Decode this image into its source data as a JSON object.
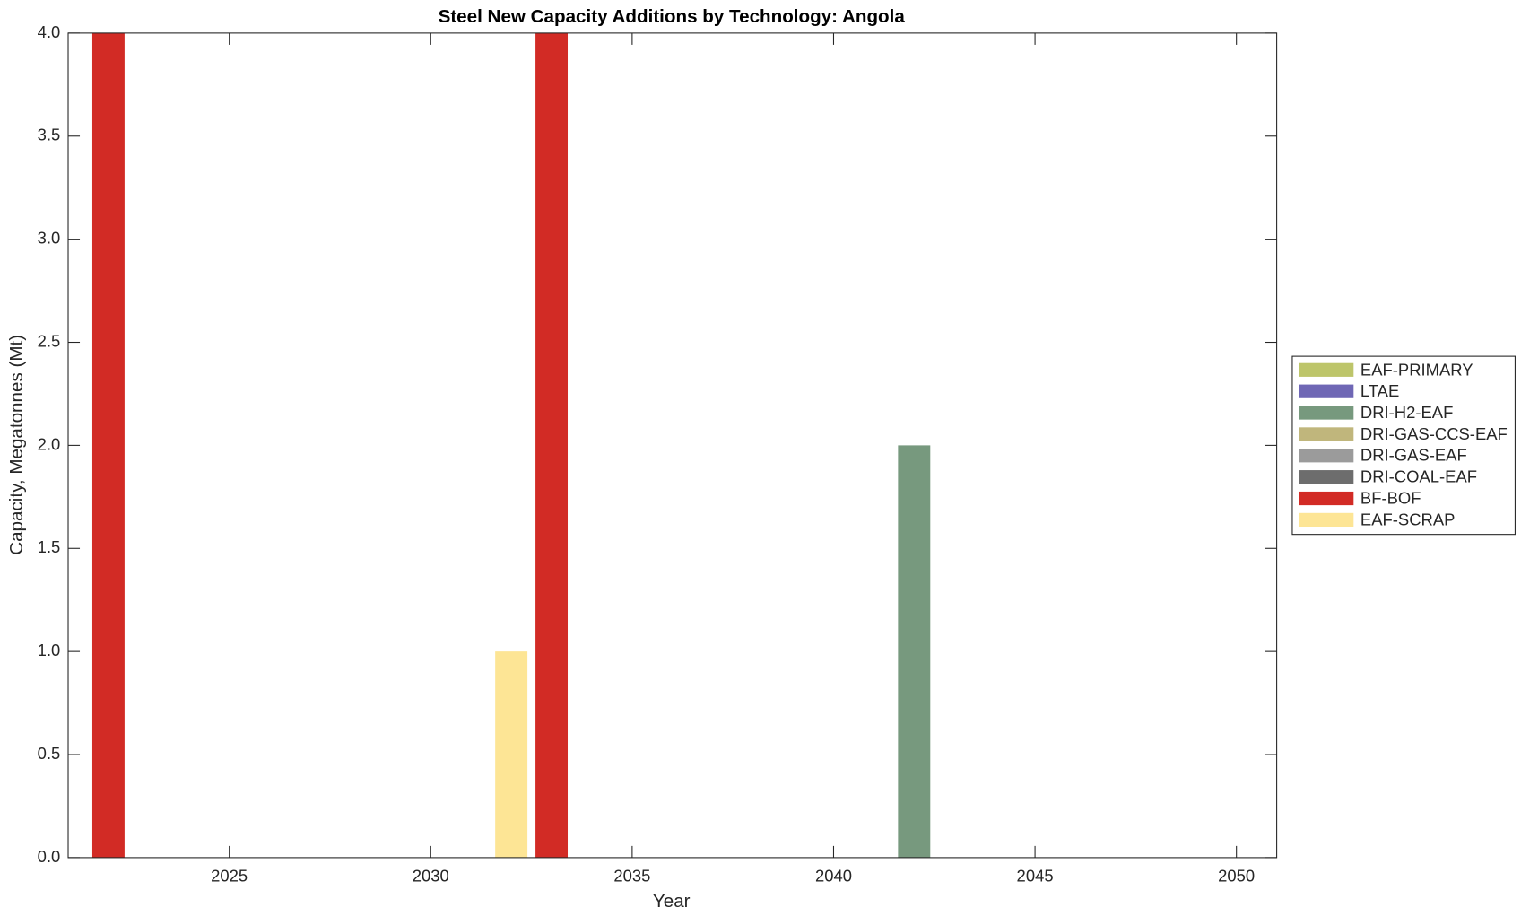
{
  "chart_data": {
    "type": "stacked-bar",
    "title": "Steel New Capacity Additions by Technology: Angola",
    "x_label": "Year",
    "y_label": "Capacity, Megatonnes (Mt)",
    "x": [
      2022,
      2032,
      2033,
      2042
    ],
    "series": [
      {
        "name": "EAF-PRIMARY",
        "color": "#bdc56a",
        "values": [
          0,
          0,
          0,
          0
        ]
      },
      {
        "name": "LTAE",
        "color": "#6f67b5",
        "values": [
          0,
          0,
          0,
          0
        ]
      },
      {
        "name": "DRI-H2-EAF",
        "color": "#77997e",
        "values": [
          0,
          0,
          0,
          2
        ]
      },
      {
        "name": "DRI-GAS-CCS-EAF",
        "color": "#c0b67c",
        "values": [
          0,
          0,
          0,
          0
        ]
      },
      {
        "name": "DRI-GAS-EAF",
        "color": "#9b9b9b",
        "values": [
          0,
          0,
          0,
          0
        ]
      },
      {
        "name": "DRI-COAL-EAF",
        "color": "#6d6d6d",
        "values": [
          0,
          0,
          0,
          0
        ]
      },
      {
        "name": "BF-BOF",
        "color": "#d22b25",
        "values": [
          4,
          0,
          4,
          0
        ]
      },
      {
        "name": "EAF-SCRAP",
        "color": "#fde595",
        "values": [
          0,
          1,
          0,
          0
        ]
      }
    ],
    "xlim": [
      2021,
      2051
    ],
    "xticks": [
      2025,
      2030,
      2035,
      2040,
      2045,
      2050
    ],
    "ylim": [
      0,
      4
    ],
    "yticks": [
      {
        "value": 0,
        "label": "0.0"
      },
      0.5,
      {
        "value": 1,
        "label": "1.0"
      },
      1.5,
      {
        "value": 2,
        "label": "2.0"
      },
      2.5,
      {
        "value": 3,
        "label": "3.0"
      },
      3.5,
      {
        "value": 4,
        "label": "4.0"
      }
    ],
    "legend_position": "right",
    "grid": false
  }
}
